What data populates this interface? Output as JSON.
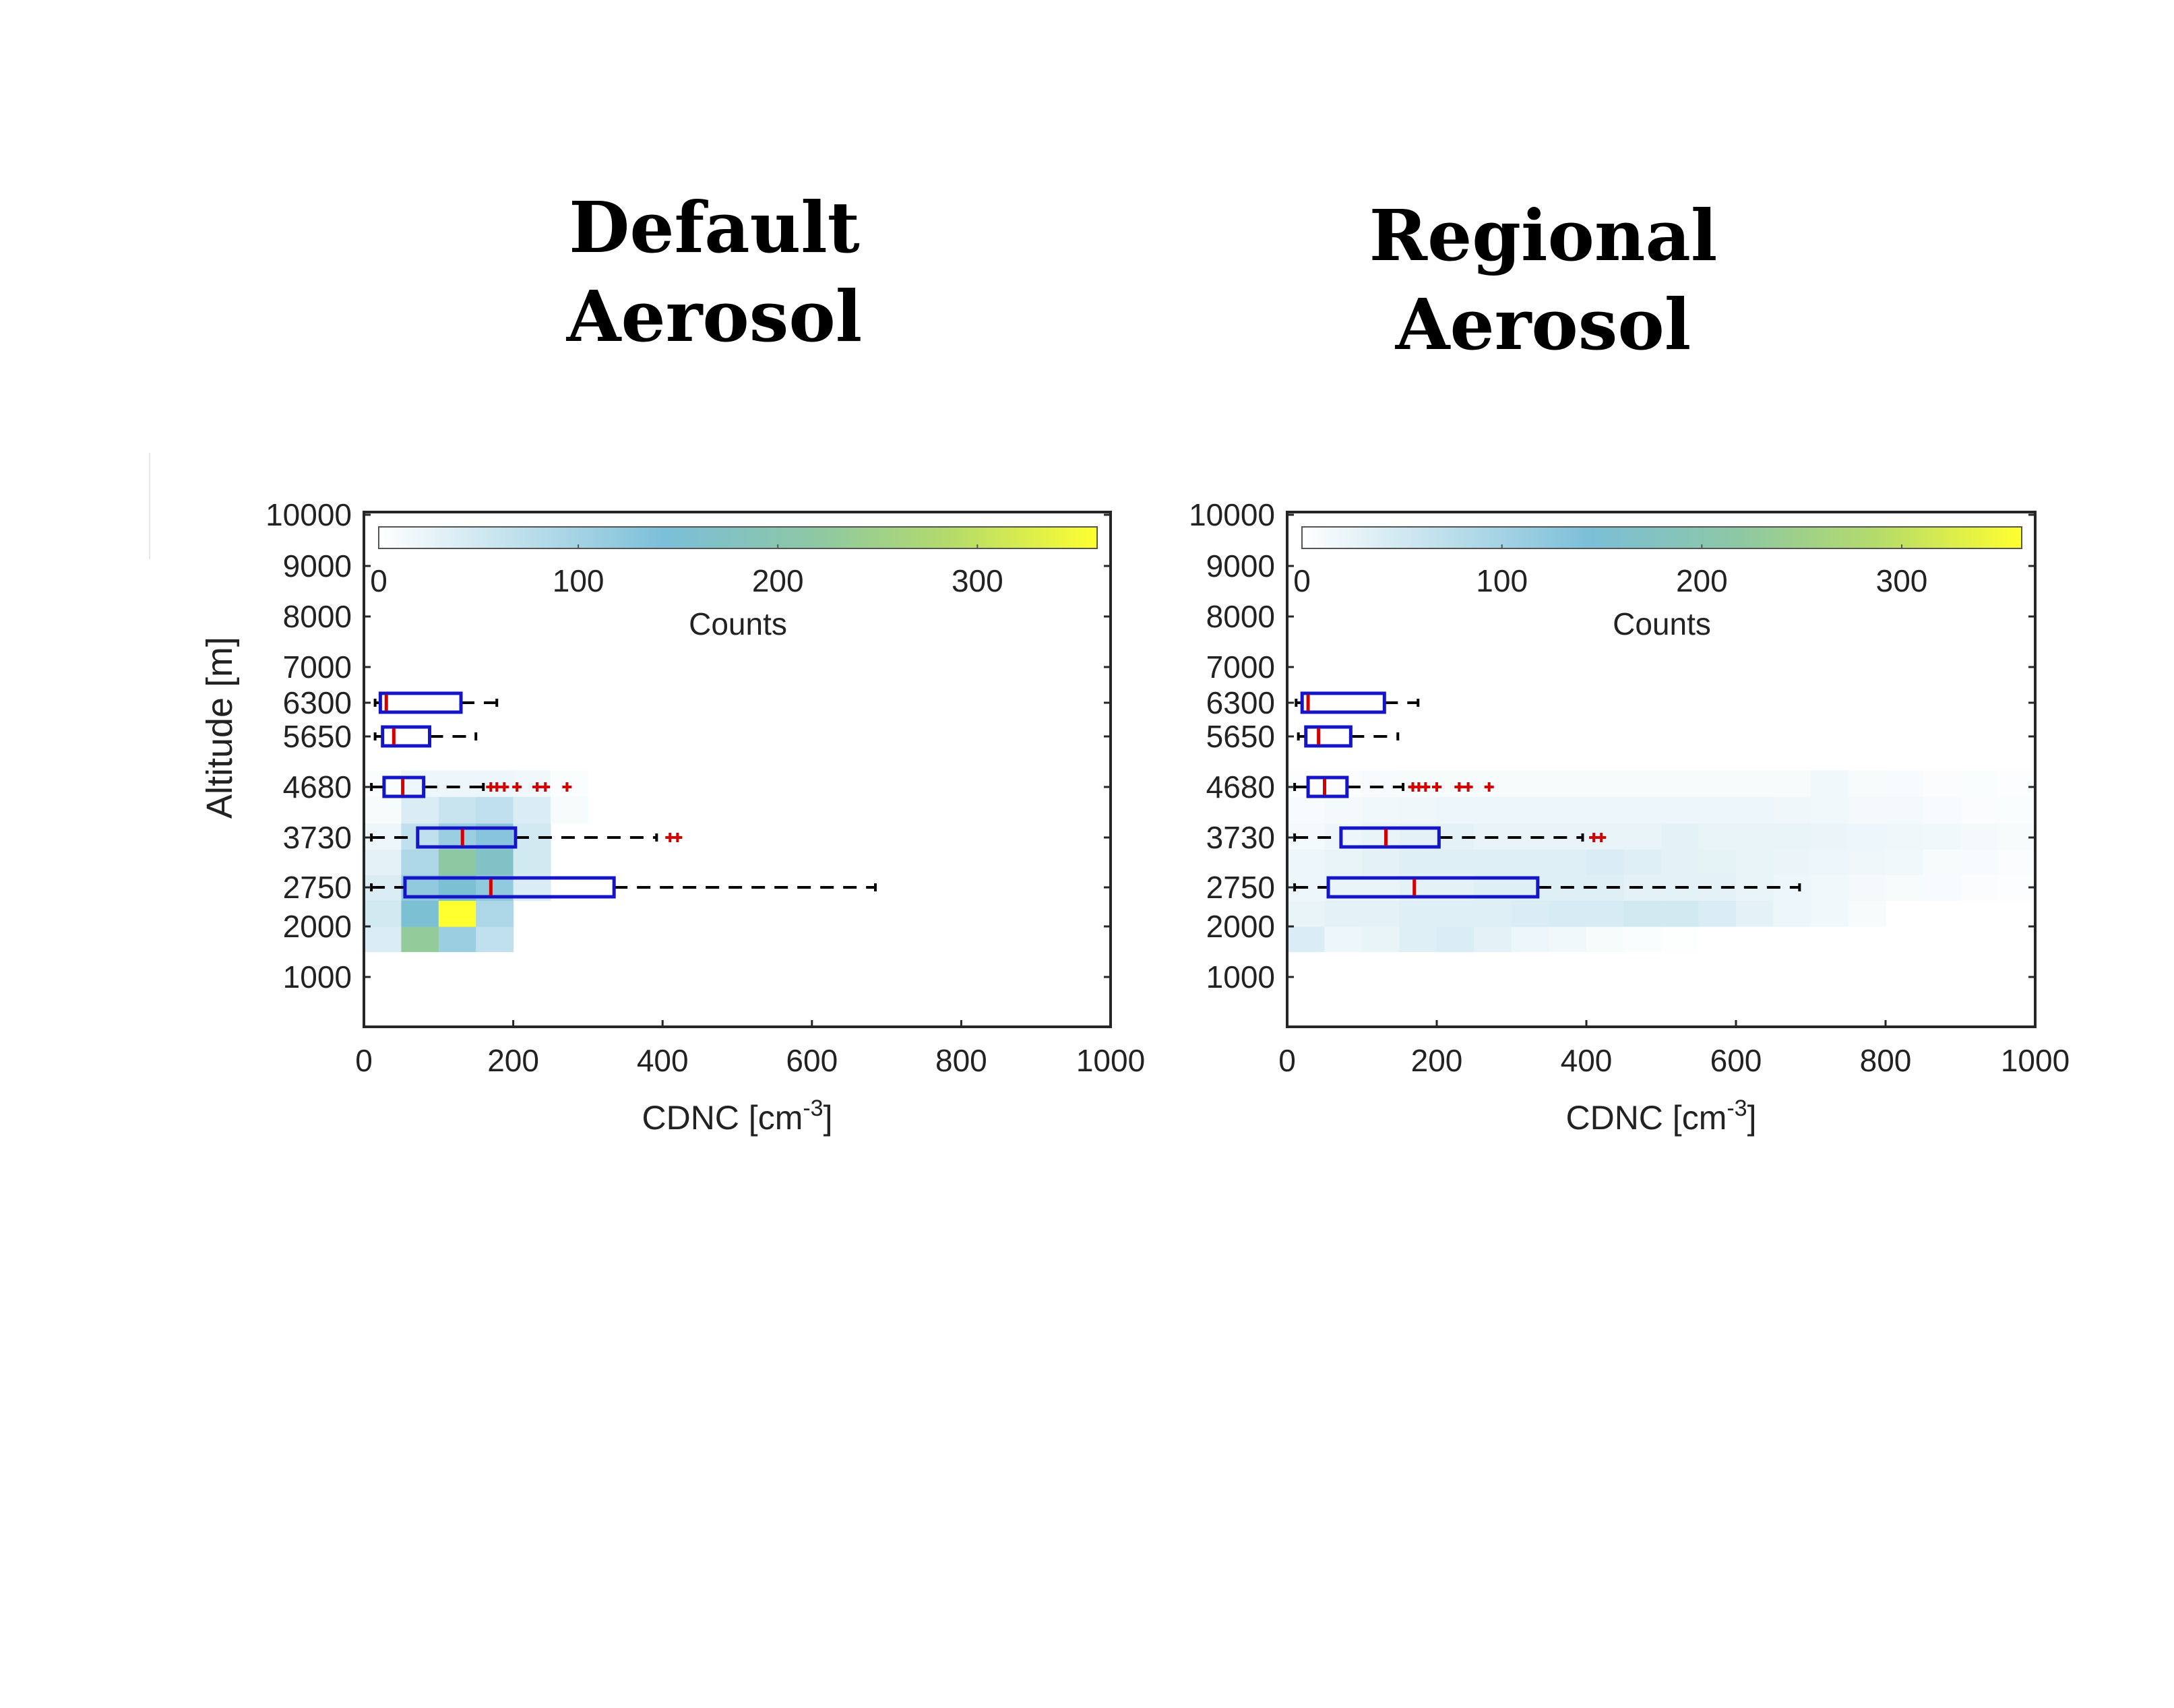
{
  "panels": [
    {
      "title_lines": [
        "Default",
        "Aerosol"
      ]
    },
    {
      "title_lines": [
        "Regional",
        "Aerosol"
      ]
    }
  ],
  "colors": {
    "box": "#1414c8",
    "median": "#d40000",
    "whisker": "#000000",
    "outlier": "#d40000",
    "colormap": [
      "#ffffff",
      "#7bbfd8",
      "#8cc7a6",
      "#b5db6a",
      "#ffff30"
    ]
  },
  "chart_data": [
    {
      "type": "heatmap",
      "title": "",
      "xlabel": "CDNC [cm",
      "xlabel_superscript": "-3",
      "xlabel_suffix": "]",
      "ylabel": "Altitude [m]",
      "xlim": [
        0,
        1000
      ],
      "ylim": [
        0,
        10000
      ],
      "xticks": [
        "0",
        "200",
        "400",
        "600",
        "800",
        "1000"
      ],
      "yticks": [
        "1000",
        "2000",
        "2750",
        "3730",
        "4680",
        "5650",
        "6300",
        "7000",
        "8000",
        "9000",
        "10000"
      ],
      "colorbar": {
        "label": "Counts",
        "ticks": [
          "0",
          "100",
          "200",
          "300"
        ],
        "range": [
          0,
          360
        ],
        "location": "top"
      },
      "heatmap_bins": {
        "x_width": 50,
        "y_edges": [
          1500,
          2000,
          2500,
          3000,
          3500,
          4000,
          4500,
          5000
        ]
      },
      "heatmap_cells": [
        [
          0,
          1500,
          40
        ],
        [
          50,
          1500,
          230
        ],
        [
          100,
          1500,
          110
        ],
        [
          150,
          1500,
          70
        ],
        [
          0,
          2000,
          50
        ],
        [
          50,
          2000,
          150
        ],
        [
          100,
          2000,
          360
        ],
        [
          150,
          2000,
          90
        ],
        [
          0,
          2500,
          40
        ],
        [
          50,
          2500,
          120
        ],
        [
          100,
          2500,
          150
        ],
        [
          150,
          2500,
          120
        ],
        [
          200,
          2500,
          40
        ],
        [
          0,
          3000,
          30
        ],
        [
          50,
          3000,
          90
        ],
        [
          100,
          3000,
          220
        ],
        [
          150,
          3000,
          170
        ],
        [
          200,
          3000,
          50
        ],
        [
          0,
          3500,
          20
        ],
        [
          50,
          3500,
          70
        ],
        [
          100,
          3500,
          110
        ],
        [
          150,
          3500,
          130
        ],
        [
          200,
          3500,
          50
        ],
        [
          0,
          4000,
          10
        ],
        [
          50,
          4000,
          40
        ],
        [
          100,
          4000,
          60
        ],
        [
          150,
          4000,
          70
        ],
        [
          200,
          4000,
          40
        ],
        [
          250,
          4000,
          10
        ],
        [
          0,
          4500,
          5
        ],
        [
          50,
          4500,
          20
        ],
        [
          100,
          4500,
          20
        ],
        [
          150,
          4500,
          20
        ],
        [
          200,
          4500,
          15
        ],
        [
          250,
          4500,
          5
        ]
      ],
      "boxplots": [
        {
          "altitude": 6300,
          "whisker_low": 15,
          "q1": 22,
          "median": 30,
          "q3": 130,
          "whisker_high": 178,
          "outliers": []
        },
        {
          "altitude": 5650,
          "whisker_low": 15,
          "q1": 25,
          "median": 40,
          "q3": 88,
          "whisker_high": 150,
          "outliers": []
        },
        {
          "altitude": 4680,
          "whisker_low": 10,
          "q1": 27,
          "median": 52,
          "q3": 80,
          "whisker_high": 160,
          "outliers": [
            170,
            178,
            188,
            205,
            232,
            243,
            272
          ]
        },
        {
          "altitude": 3730,
          "whisker_low": 10,
          "q1": 72,
          "median": 132,
          "q3": 203,
          "whisker_high": 392,
          "outliers": [
            410,
            420
          ]
        },
        {
          "altitude": 2750,
          "whisker_low": 10,
          "q1": 55,
          "median": 170,
          "q3": 335,
          "whisker_high": 685,
          "outliers": []
        }
      ]
    },
    {
      "type": "heatmap",
      "title": "",
      "xlabel": "CDNC [cm",
      "xlabel_superscript": "-3",
      "xlabel_suffix": "]",
      "ylabel": "",
      "xlim": [
        0,
        1000
      ],
      "ylim": [
        0,
        10000
      ],
      "xticks": [
        "0",
        "200",
        "400",
        "600",
        "800",
        "1000"
      ],
      "yticks": [
        "1000",
        "2000",
        "2750",
        "3730",
        "4680",
        "5650",
        "6300",
        "7000",
        "8000",
        "9000",
        "10000"
      ],
      "colorbar": {
        "label": "Counts",
        "ticks": [
          "0",
          "100",
          "200",
          "300"
        ],
        "range": [
          0,
          360
        ],
        "location": "top"
      },
      "heatmap_bins": {
        "x_width": 50,
        "y_edges": [
          1500,
          2000,
          2500,
          3000,
          3500,
          4000,
          4500,
          5000
        ]
      },
      "heatmap_cells": [
        [
          0,
          1500,
          40
        ],
        [
          50,
          1500,
          20
        ],
        [
          100,
          1500,
          25
        ],
        [
          150,
          1500,
          35
        ],
        [
          200,
          1500,
          40
        ],
        [
          250,
          1500,
          30
        ],
        [
          300,
          1500,
          20
        ],
        [
          350,
          1500,
          15
        ],
        [
          400,
          1500,
          10
        ],
        [
          450,
          1500,
          5
        ],
        [
          500,
          1500,
          2
        ],
        [
          0,
          2000,
          25
        ],
        [
          50,
          2000,
          30
        ],
        [
          100,
          2000,
          30
        ],
        [
          150,
          2000,
          35
        ],
        [
          200,
          2000,
          35
        ],
        [
          250,
          2000,
          35
        ],
        [
          300,
          2000,
          40
        ],
        [
          350,
          2000,
          45
        ],
        [
          400,
          2000,
          45
        ],
        [
          450,
          2000,
          50
        ],
        [
          500,
          2000,
          50
        ],
        [
          550,
          2000,
          40
        ],
        [
          600,
          2000,
          30
        ],
        [
          650,
          2000,
          20
        ],
        [
          700,
          2000,
          15
        ],
        [
          750,
          2000,
          10
        ],
        [
          0,
          2500,
          20
        ],
        [
          50,
          2500,
          25
        ],
        [
          100,
          2500,
          25
        ],
        [
          150,
          2500,
          30
        ],
        [
          200,
          2500,
          30
        ],
        [
          250,
          2500,
          35
        ],
        [
          300,
          2500,
          35
        ],
        [
          350,
          2500,
          35
        ],
        [
          400,
          2500,
          35
        ],
        [
          450,
          2500,
          30
        ],
        [
          500,
          2500,
          30
        ],
        [
          550,
          2500,
          30
        ],
        [
          600,
          2500,
          25
        ],
        [
          650,
          2500,
          20
        ],
        [
          700,
          2500,
          15
        ],
        [
          750,
          2500,
          12
        ],
        [
          800,
          2500,
          10
        ],
        [
          850,
          2500,
          8
        ],
        [
          900,
          2500,
          6
        ],
        [
          950,
          2500,
          4
        ],
        [
          0,
          3000,
          20
        ],
        [
          50,
          3000,
          25
        ],
        [
          100,
          3000,
          30
        ],
        [
          150,
          3000,
          35
        ],
        [
          200,
          3000,
          35
        ],
        [
          250,
          3000,
          35
        ],
        [
          300,
          3000,
          35
        ],
        [
          350,
          3000,
          35
        ],
        [
          400,
          3000,
          40
        ],
        [
          450,
          3000,
          35
        ],
        [
          500,
          3000,
          30
        ],
        [
          550,
          3000,
          28
        ],
        [
          600,
          3000,
          25
        ],
        [
          650,
          3000,
          22
        ],
        [
          700,
          3000,
          20
        ],
        [
          750,
          3000,
          18
        ],
        [
          800,
          3000,
          15
        ],
        [
          850,
          3000,
          10
        ],
        [
          900,
          3000,
          8
        ],
        [
          950,
          3000,
          6
        ],
        [
          0,
          3500,
          12
        ],
        [
          50,
          3500,
          20
        ],
        [
          100,
          3500,
          25
        ],
        [
          150,
          3500,
          30
        ],
        [
          200,
          3500,
          30
        ],
        [
          250,
          3500,
          25
        ],
        [
          300,
          3500,
          25
        ],
        [
          350,
          3500,
          25
        ],
        [
          400,
          3500,
          25
        ],
        [
          450,
          3500,
          25
        ],
        [
          500,
          3500,
          30
        ],
        [
          550,
          3500,
          25
        ],
        [
          600,
          3500,
          25
        ],
        [
          650,
          3500,
          25
        ],
        [
          700,
          3500,
          22
        ],
        [
          750,
          3500,
          20
        ],
        [
          800,
          3500,
          18
        ],
        [
          850,
          3500,
          15
        ],
        [
          900,
          3500,
          12
        ],
        [
          950,
          3500,
          10
        ],
        [
          0,
          4000,
          8
        ],
        [
          50,
          4000,
          12
        ],
        [
          100,
          4000,
          15
        ],
        [
          150,
          4000,
          18
        ],
        [
          200,
          4000,
          20
        ],
        [
          250,
          4000,
          20
        ],
        [
          300,
          4000,
          20
        ],
        [
          350,
          4000,
          20
        ],
        [
          400,
          4000,
          20
        ],
        [
          450,
          4000,
          20
        ],
        [
          500,
          4000,
          20
        ],
        [
          550,
          4000,
          20
        ],
        [
          600,
          4000,
          20
        ],
        [
          650,
          4000,
          18
        ],
        [
          700,
          4000,
          15
        ],
        [
          750,
          4000,
          12
        ],
        [
          800,
          4000,
          12
        ],
        [
          850,
          4000,
          8
        ],
        [
          900,
          4000,
          6
        ],
        [
          950,
          4000,
          5
        ],
        [
          0,
          4500,
          4
        ],
        [
          50,
          4500,
          6
        ],
        [
          100,
          4500,
          8
        ],
        [
          150,
          4500,
          10
        ],
        [
          200,
          4500,
          10
        ],
        [
          250,
          4500,
          10
        ],
        [
          300,
          4500,
          10
        ],
        [
          350,
          4500,
          10
        ],
        [
          400,
          4500,
          10
        ],
        [
          450,
          4500,
          10
        ],
        [
          500,
          4500,
          10
        ],
        [
          550,
          4500,
          10
        ],
        [
          600,
          4500,
          10
        ],
        [
          650,
          4500,
          10
        ],
        [
          700,
          4500,
          15
        ],
        [
          750,
          4500,
          10
        ],
        [
          800,
          4500,
          8
        ],
        [
          850,
          4500,
          6
        ],
        [
          900,
          4500,
          5
        ],
        [
          950,
          4500,
          4
        ]
      ],
      "boxplots": [
        {
          "altitude": 6300,
          "whisker_low": 12,
          "q1": 20,
          "median": 28,
          "q3": 130,
          "whisker_high": 175,
          "outliers": []
        },
        {
          "altitude": 5650,
          "whisker_low": 15,
          "q1": 25,
          "median": 42,
          "q3": 85,
          "whisker_high": 148,
          "outliers": []
        },
        {
          "altitude": 4680,
          "whisker_low": 10,
          "q1": 28,
          "median": 50,
          "q3": 80,
          "whisker_high": 155,
          "outliers": [
            168,
            176,
            185,
            200,
            230,
            242,
            270
          ]
        },
        {
          "altitude": 3730,
          "whisker_low": 10,
          "q1": 72,
          "median": 132,
          "q3": 203,
          "whisker_high": 395,
          "outliers": [
            410,
            420
          ]
        },
        {
          "altitude": 2750,
          "whisker_low": 10,
          "q1": 55,
          "median": 170,
          "q3": 335,
          "whisker_high": 685,
          "outliers": []
        }
      ]
    }
  ]
}
